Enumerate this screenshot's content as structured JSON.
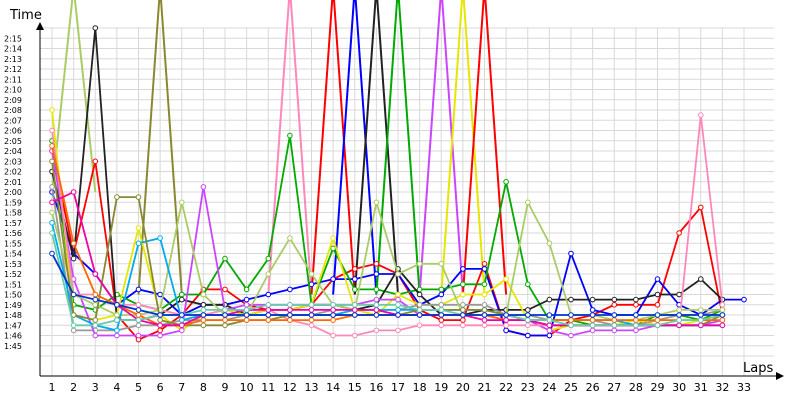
{
  "chart_data": {
    "type": "line",
    "ylabel": "Time",
    "xlabel": "Laps",
    "x_categories": [
      "1",
      "2",
      "3",
      "4",
      "5",
      "6",
      "7",
      "8",
      "9",
      "10",
      "11",
      "12",
      "13",
      "14",
      "15",
      "16",
      "17",
      "18",
      "19",
      "20",
      "21",
      "22",
      "23",
      "24",
      "25",
      "26",
      "27",
      "28",
      "29",
      "30",
      "31",
      "32",
      "33"
    ],
    "y_axis": {
      "unit": "seconds",
      "min": 104,
      "max": 136,
      "tick_labels": [
        "1:45",
        "1:46",
        "1:47",
        "1:48",
        "1:49",
        "1:50",
        "1:51",
        "1:52",
        "1:53",
        "1:54",
        "1:55",
        "1:56",
        "1:57",
        "1:58",
        "1:59",
        "2:00",
        "2:01",
        "2:02",
        "2:03",
        "2:04",
        "2:05",
        "2:06",
        "2:07",
        "2:08",
        "2:09",
        "2:10",
        "2:11",
        "2:12",
        "2:13",
        "2:14",
        "2:15"
      ]
    },
    "grid": true,
    "series": [
      {
        "color": "#ff0000",
        "values": [
          124,
          114,
          123,
          108,
          105.6,
          106.5,
          108,
          110.5,
          110.5,
          109,
          108.5,
          108.5,
          109,
          111.5,
          112.5,
          113,
          112,
          108.5,
          107.5,
          107.5,
          113,
          106.5,
          106,
          106,
          107.5,
          108,
          109,
          109,
          109,
          116,
          118.5,
          108
        ]
      },
      {
        "color": "#0000ff",
        "values": [
          120,
          114,
          112,
          109,
          110.5,
          110,
          108,
          109,
          109,
          109.5,
          110,
          110.5,
          111,
          111.5,
          111.5,
          112,
          112,
          109,
          110,
          112.5,
          112.5,
          106.5,
          106,
          106,
          114,
          108.5,
          108,
          108,
          111.5,
          109,
          108,
          109.5,
          109.5
        ]
      },
      {
        "color": "#00aa00",
        "values": [
          125,
          109,
          108.5,
          110,
          109,
          108.5,
          110,
          110,
          113.5,
          110.5,
          113.5,
          125.5,
          109,
          114.5,
          110.5,
          110.5,
          110,
          110.5,
          110.5,
          111,
          111,
          121,
          111,
          107.5,
          107.5,
          107,
          107,
          107,
          108,
          108,
          107.5,
          108.5
        ]
      },
      {
        "color": "#222222",
        "values": [
          122,
          113.5,
          136,
          107.5,
          107.5,
          108,
          109.5,
          109,
          109,
          108,
          108.5,
          108.5,
          109,
          109,
          108.5,
          109,
          112.5,
          110,
          108,
          108,
          108.5,
          108.5,
          108.5,
          109.5,
          109.5,
          109.5,
          109.5,
          109.5,
          110,
          110,
          111.5,
          109.5
        ]
      },
      {
        "color": "#e6e600",
        "values": [
          128,
          108,
          107.5,
          108,
          116.5,
          108,
          106.5,
          108,
          108.5,
          108,
          108.5,
          108.5,
          109,
          115.5,
          108.5,
          108,
          110,
          109,
          109,
          110,
          110,
          111.5,
          107.5,
          106.5,
          107,
          107,
          107,
          107.5,
          107,
          107,
          107.5,
          108
        ]
      },
      {
        "color": "#999999",
        "values": [
          120.5,
          106.5,
          106.5,
          106.5,
          107,
          107,
          107.5,
          107.5,
          107.5,
          108,
          108,
          108,
          108,
          108.5,
          108.5,
          108.5,
          108.5,
          109,
          109,
          109,
          109,
          108,
          108,
          107.5,
          107.5,
          107.5,
          107,
          107,
          107.5,
          108,
          108,
          108.5
        ]
      },
      {
        "color": "#cc44ff",
        "values": [
          124,
          111.5,
          106,
          106,
          106,
          106,
          106.5,
          120.5,
          108.5,
          109,
          109,
          109,
          109,
          109,
          109,
          109.5,
          109.5,
          108,
          108,
          108,
          108,
          107.5,
          107.5,
          106.5,
          106,
          106.5,
          106.5,
          106.5,
          107,
          107,
          107,
          107.5
        ]
      },
      {
        "color": "#ff88bb",
        "values": [
          126,
          110,
          110,
          109,
          109,
          108.5,
          108,
          108,
          108.5,
          108.5,
          108.5,
          107.5,
          107,
          106,
          106,
          106.5,
          106.5,
          107,
          107,
          107,
          107,
          107,
          107,
          107,
          107,
          107,
          107,
          107,
          107,
          107,
          127.5,
          109
        ]
      },
      {
        "color": "#aacc66",
        "values": [
          118,
          110,
          109,
          108,
          108,
          108.5,
          119,
          110,
          108,
          108,
          112,
          115.5,
          112,
          109,
          108.5,
          119,
          112,
          113,
          113,
          108,
          108,
          108,
          119,
          115,
          108,
          108,
          107.5,
          107.5,
          108,
          108.5,
          108.5,
          108.5
        ]
      },
      {
        "color": "#00aaee",
        "values": [
          117,
          108,
          107,
          106.5,
          115,
          115.5,
          107.5,
          108,
          108,
          108,
          108,
          108,
          108,
          108,
          108.5,
          108.5,
          108.5,
          108.5,
          108.5,
          108.5,
          108.5,
          108,
          107.5,
          107.5,
          107.5,
          107.5,
          107.5,
          107,
          107,
          107,
          107,
          107
        ]
      },
      {
        "color": "#888833",
        "values": [
          123,
          108,
          107.5,
          119.5,
          119.5,
          107.5,
          107,
          107,
          107,
          107.5,
          107.5,
          108,
          108,
          108,
          108,
          108,
          108,
          108.5,
          108.5,
          108.5,
          108.5,
          108,
          107.5,
          107,
          107,
          107,
          107,
          107,
          107,
          107,
          107,
          108
        ]
      },
      {
        "color": "#ff6600",
        "values": [
          124.5,
          115,
          110,
          109,
          108,
          107,
          107,
          107.5,
          107.5,
          107.5,
          107.5,
          107.5,
          107.5,
          107.5,
          108,
          108,
          108,
          108,
          108,
          108,
          108,
          107.5,
          107.5,
          107.5,
          107.5,
          107.5,
          107.5,
          107.5,
          107.5,
          107.5,
          107.5,
          107.5
        ]
      },
      {
        "color": "#ee00aa",
        "values": [
          119,
          120,
          112,
          109,
          107.5,
          107,
          107,
          108,
          108,
          108.5,
          108.5,
          108.5,
          108.5,
          108.5,
          108.5,
          108.5,
          108,
          108,
          108,
          108,
          107.5,
          107.5,
          107.5,
          107,
          107,
          107,
          107,
          107,
          107,
          107,
          107,
          107
        ]
      },
      {
        "color": "#66ccaa",
        "values": [
          116,
          107,
          107,
          107.5,
          107.5,
          108,
          108,
          108.5,
          108.5,
          108.5,
          109,
          109,
          109,
          109,
          109,
          109,
          109,
          108.5,
          108.5,
          108,
          108,
          108,
          107.5,
          107.5,
          107,
          107,
          107,
          107,
          107,
          107.5,
          107.5,
          108
        ]
      },
      {
        "color": "#0033cc",
        "values": [
          114,
          110,
          109.5,
          109,
          108.5,
          108,
          108,
          108,
          108,
          108,
          108,
          108,
          108,
          108,
          108,
          108,
          108,
          108,
          108,
          108,
          108,
          108,
          108,
          108,
          108,
          108,
          108,
          108,
          108,
          108,
          108,
          108
        ]
      }
    ],
    "spike_series": [
      {
        "color": "#ff88bb",
        "x": [
          11,
          12,
          13
        ],
        "values": [
          110,
          140,
          110
        ]
      },
      {
        "color": "#ff0000",
        "x": [
          13,
          14,
          15
        ],
        "values": [
          110,
          140,
          110
        ]
      },
      {
        "color": "#0000ff",
        "x": [
          14,
          15,
          16
        ],
        "values": [
          110,
          140,
          110
        ]
      },
      {
        "color": "#222222",
        "x": [
          15,
          16,
          17
        ],
        "values": [
          110,
          140,
          110
        ]
      },
      {
        "color": "#00aa00",
        "x": [
          16,
          17,
          18
        ],
        "values": [
          110,
          140,
          110
        ]
      },
      {
        "color": "#cc44ff",
        "x": [
          18,
          19,
          20
        ],
        "values": [
          110,
          140,
          110
        ]
      },
      {
        "color": "#e6e600",
        "x": [
          19,
          20,
          21
        ],
        "values": [
          110,
          140,
          110
        ]
      },
      {
        "color": "#ff0000",
        "x": [
          20,
          21,
          22
        ],
        "values": [
          110,
          140,
          110
        ]
      },
      {
        "color": "#aacc66",
        "x": [
          1,
          2,
          3
        ],
        "values": [
          120,
          140,
          120
        ]
      },
      {
        "color": "#888833",
        "x": [
          5,
          6,
          7
        ],
        "values": [
          110,
          140,
          110
        ]
      }
    ]
  }
}
